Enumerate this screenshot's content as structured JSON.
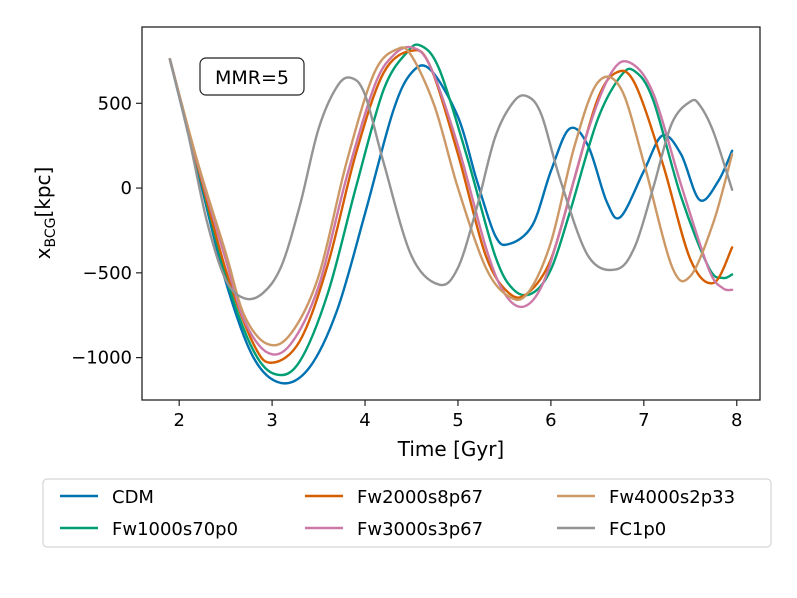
{
  "chart_data": {
    "type": "line",
    "title": "",
    "xlabel": "Time [Gyr]",
    "ylabel_main": "x",
    "ylabel_sub": "BCG",
    "ylabel_unit": "[kpc]",
    "xlim": [
      1.6,
      8.25
    ],
    "ylim": [
      -1250,
      950
    ],
    "xticks": [
      2,
      3,
      4,
      5,
      6,
      7,
      8
    ],
    "xtick_labels": [
      "2",
      "3",
      "4",
      "5",
      "6",
      "7",
      "8"
    ],
    "yticks": [
      -1000,
      -500,
      0,
      500
    ],
    "ytick_labels": [
      "−1000",
      "−500",
      "0",
      "500"
    ],
    "annotation": "MMR=5",
    "legend_position": "below",
    "series": [
      {
        "name": "CDM",
        "color": "#0072b2",
        "x": [
          1.9,
          2.2,
          2.5,
          2.8,
          3.1,
          3.4,
          3.7,
          4.0,
          4.3,
          4.5,
          4.7,
          5.0,
          5.2,
          5.4,
          5.55,
          5.8,
          6.0,
          6.2,
          6.4,
          6.6,
          6.75,
          7.0,
          7.2,
          7.4,
          7.6,
          7.8,
          7.95
        ],
        "y": [
          760,
          100,
          -550,
          -1000,
          -1150,
          -1060,
          -720,
          -150,
          450,
          680,
          700,
          420,
          50,
          -280,
          -330,
          -220,
          100,
          350,
          250,
          -80,
          -170,
          100,
          310,
          200,
          -70,
          40,
          220
        ]
      },
      {
        "name": "Fw1000s70p0",
        "color": "#009e73",
        "x": [
          1.9,
          2.2,
          2.5,
          2.8,
          3.05,
          3.3,
          3.6,
          3.9,
          4.2,
          4.45,
          4.6,
          4.8,
          5.1,
          5.4,
          5.6,
          5.8,
          6.0,
          6.2,
          6.5,
          6.75,
          6.9,
          7.1,
          7.4,
          7.7,
          7.85,
          7.95
        ],
        "y": [
          760,
          120,
          -520,
          -960,
          -1100,
          -1020,
          -620,
          0,
          580,
          800,
          840,
          700,
          180,
          -400,
          -600,
          -620,
          -480,
          -150,
          400,
          660,
          690,
          520,
          -50,
          -470,
          -530,
          -510
        ]
      },
      {
        "name": "Fw2000s8p67",
        "color": "#d55e00",
        "x": [
          1.9,
          2.2,
          2.5,
          2.8,
          3.0,
          3.3,
          3.6,
          3.9,
          4.2,
          4.5,
          4.7,
          5.0,
          5.3,
          5.55,
          5.75,
          6.0,
          6.25,
          6.5,
          6.7,
          6.9,
          7.2,
          7.5,
          7.75,
          7.95
        ],
        "y": [
          760,
          130,
          -480,
          -920,
          -1030,
          -900,
          -450,
          200,
          680,
          810,
          720,
          200,
          -400,
          -620,
          -620,
          -420,
          50,
          520,
          680,
          620,
          150,
          -420,
          -560,
          -350
        ]
      },
      {
        "name": "Fw3000s3p67",
        "color": "#cc79a7",
        "x": [
          1.9,
          2.2,
          2.5,
          2.7,
          2.95,
          3.2,
          3.5,
          3.8,
          4.1,
          4.3,
          4.5,
          4.7,
          5.0,
          5.3,
          5.5,
          5.7,
          5.9,
          6.1,
          6.4,
          6.65,
          6.85,
          7.1,
          7.4,
          7.7,
          7.85,
          7.95
        ],
        "y": [
          760,
          140,
          -420,
          -780,
          -970,
          -920,
          -580,
          60,
          600,
          780,
          830,
          720,
          250,
          -350,
          -620,
          -700,
          -580,
          -250,
          340,
          680,
          740,
          560,
          20,
          -480,
          -590,
          -600
        ]
      },
      {
        "name": "Fw4000s2p33",
        "color": "#cc9966",
        "x": [
          1.9,
          2.2,
          2.5,
          2.7,
          2.95,
          3.2,
          3.5,
          3.8,
          4.1,
          4.35,
          4.5,
          4.75,
          5.0,
          5.3,
          5.55,
          5.75,
          6.0,
          6.25,
          6.5,
          6.75,
          7.0,
          7.3,
          7.5,
          7.75,
          7.95
        ],
        "y": [
          760,
          150,
          -380,
          -750,
          -920,
          -860,
          -520,
          150,
          680,
          820,
          780,
          480,
          0,
          -470,
          -640,
          -620,
          -320,
          240,
          620,
          590,
          150,
          -460,
          -520,
          -200,
          200
        ]
      },
      {
        "name": "FC1p0",
        "color": "#949494",
        "x": [
          1.9,
          2.1,
          2.3,
          2.5,
          2.7,
          2.9,
          3.1,
          3.3,
          3.5,
          3.7,
          3.85,
          4.0,
          4.2,
          4.5,
          4.8,
          5.0,
          5.2,
          5.4,
          5.6,
          5.75,
          5.9,
          6.1,
          6.4,
          6.7,
          6.9,
          7.1,
          7.3,
          7.5,
          7.6,
          7.75,
          7.95
        ],
        "y": [
          760,
          310,
          -200,
          -540,
          -650,
          -620,
          -460,
          -100,
          350,
          600,
          650,
          550,
          150,
          -400,
          -570,
          -470,
          -120,
          300,
          510,
          540,
          430,
          50,
          -400,
          -480,
          -350,
          0,
          380,
          510,
          490,
          330,
          -10
        ]
      }
    ]
  }
}
